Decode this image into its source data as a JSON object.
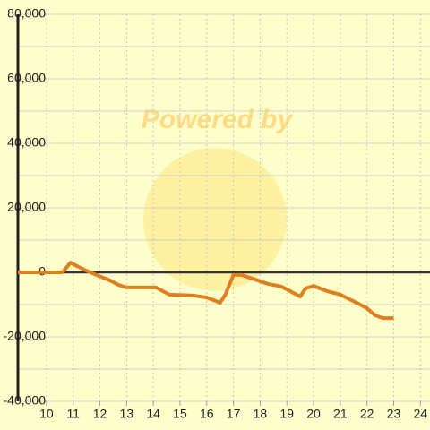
{
  "chart_data": {
    "type": "line",
    "watermark": "Powered by",
    "x": [
      8.93,
      10.6,
      10.9,
      11.2,
      11.5,
      11.95,
      12.3,
      12.7,
      13.0,
      14.1,
      14.6,
      15.5,
      16.0,
      16.5,
      16.7,
      17.0,
      17.3,
      17.8,
      18.3,
      18.8,
      19.5,
      19.7,
      20.0,
      20.5,
      21.0,
      21.6,
      22.0,
      22.3,
      22.6,
      23.0
    ],
    "series": [
      {
        "color": "#e07f20",
        "values": [
          0,
          0,
          3000,
          1700,
          500,
          -1100,
          -2200,
          -3900,
          -4700,
          -4700,
          -6900,
          -7200,
          -7800,
          -9400,
          -6900,
          -800,
          -800,
          -2200,
          -3600,
          -4400,
          -7500,
          -5000,
          -4200,
          -5800,
          -6900,
          -9400,
          -11100,
          -13300,
          -14200,
          -14200
        ]
      }
    ],
    "xlim": [
      8.93,
      24.36
    ],
    "ylim": [
      -40000,
      80000
    ],
    "xticks": [
      10,
      11,
      12,
      13,
      14,
      15,
      16,
      17,
      18,
      19,
      20,
      21,
      22,
      23,
      24
    ],
    "yticks": [
      {
        "value": -40000,
        "label": "-40,000"
      },
      {
        "value": -20000,
        "label": "-20,000"
      },
      {
        "value": 0,
        "label": "0"
      },
      {
        "value": 20000,
        "label": "20,000"
      },
      {
        "value": 40000,
        "label": "40,000"
      },
      {
        "value": 60000,
        "label": "60,000"
      },
      {
        "value": 80000,
        "label": "80,000"
      }
    ],
    "yminorticks": [
      -30000,
      -10000,
      10000,
      30000,
      50000,
      70000
    ],
    "grid": true
  }
}
